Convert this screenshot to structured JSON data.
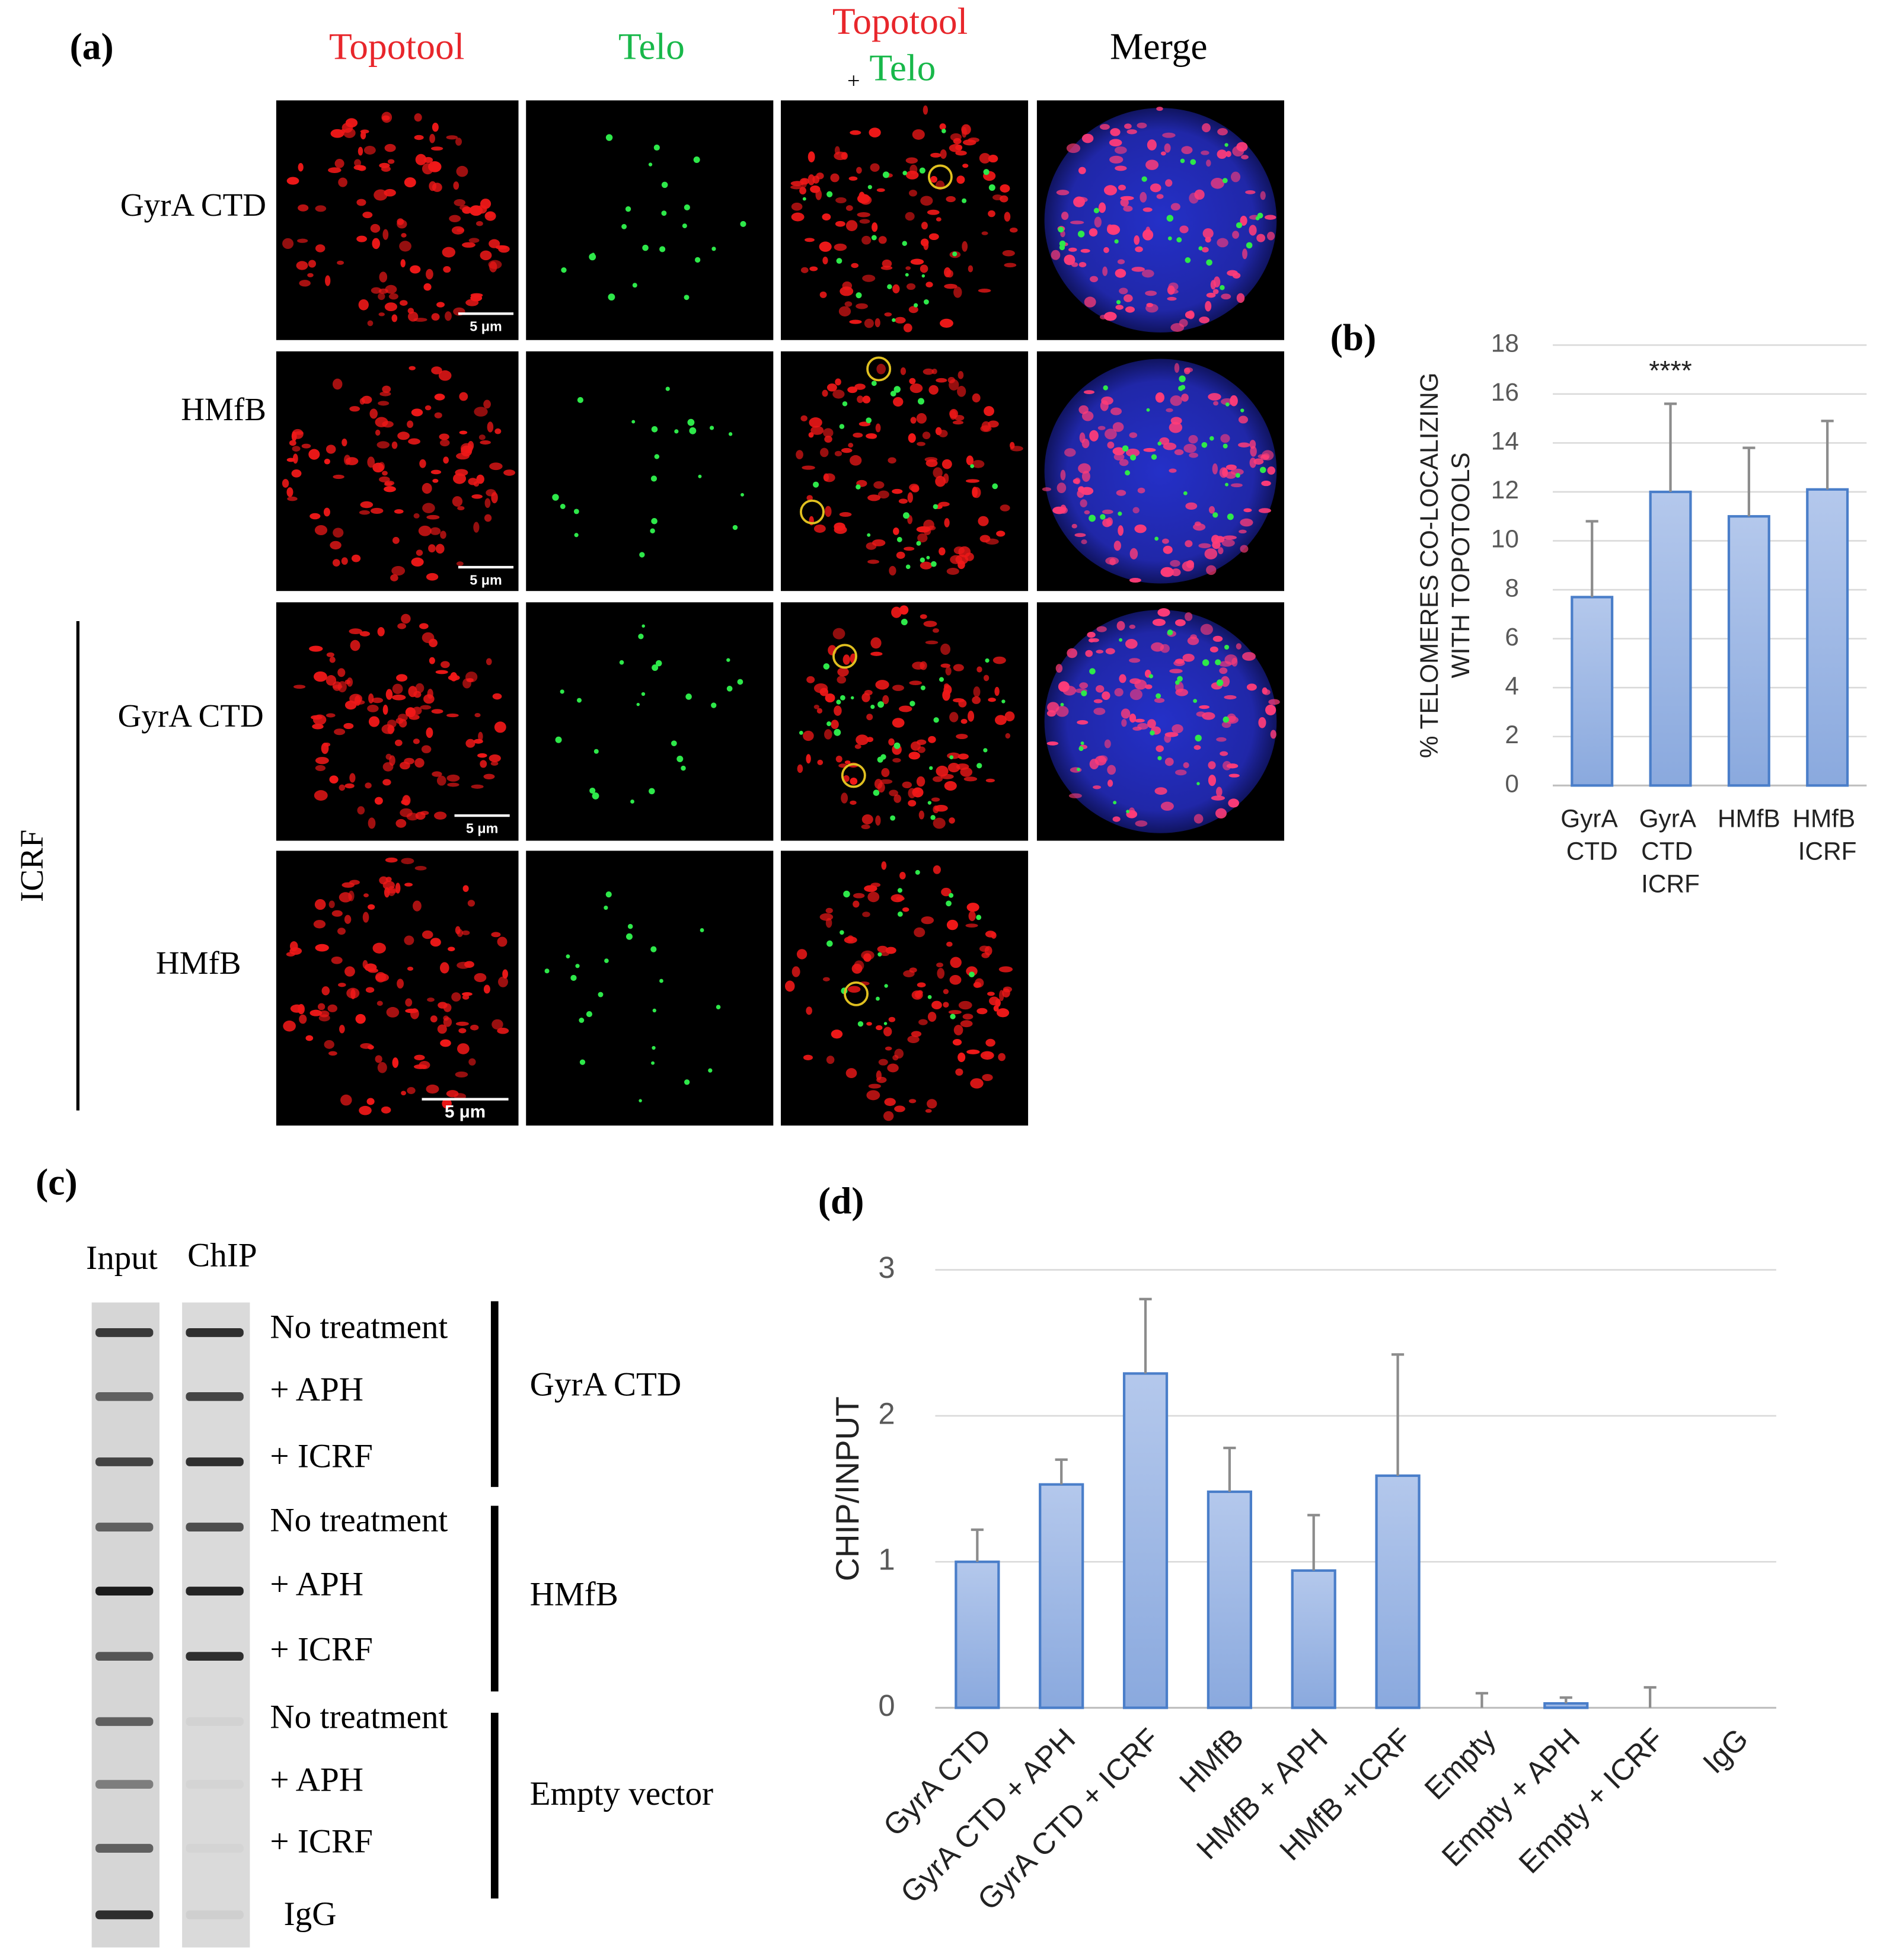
{
  "panel_a": {
    "label": "(a)",
    "headers": {
      "topotool": "Topotool",
      "telo": "Telo",
      "combined": [
        "Topotool",
        "+",
        "Telo"
      ],
      "merge": "Merge"
    },
    "rows": [
      "GyrA CTD",
      "HMfB",
      "GyrA CTD",
      "HMfB"
    ],
    "group": "ICRF",
    "scale_bars": [
      "5 μm",
      "5 μm",
      "5 μm",
      "5 μm"
    ]
  },
  "panel_c": {
    "label": "(c)",
    "lanes": [
      "Input",
      "ChIP"
    ],
    "treatments": [
      "No treatment",
      "+ APH",
      "+ ICRF",
      "No treatment",
      "+ APH",
      "+ ICRF",
      "No treatment",
      "+ APH",
      "+ ICRF",
      "IgG"
    ],
    "groups": [
      "GyrA CTD",
      "HMfB",
      "Empty vector"
    ]
  },
  "chart_data": [
    {
      "type": "bar",
      "panel_label": "(b)",
      "ylabel": [
        "% TELOMERES CO-LOCALIZING",
        "WITH TOPOTOOLS"
      ],
      "annotation": "****",
      "categories": [
        "GyrA CTD",
        "GyrA CTD ICRF",
        "HMfB",
        "HMfB ICRF"
      ],
      "series": [
        {
          "color": "#4a7ec9",
          "values": [
            7.7,
            12.0,
            11.0,
            12.1
          ],
          "errors": [
            3.1,
            3.6,
            2.8,
            2.8
          ]
        }
      ],
      "ylim": [
        0,
        18
      ],
      "yticks": [
        0,
        2,
        4,
        6,
        8,
        10,
        12,
        14,
        16,
        18
      ],
      "grid": true
    },
    {
      "type": "bar",
      "panel_label": "(d)",
      "ylabel": "CHIP/INPUT",
      "categories": [
        "GyrA CTD",
        "GyrA CTD + APH",
        "GyrA CTD + ICRF",
        "HMfB",
        "HMfB + APH",
        "HMfB +ICRF",
        "Empty",
        "Empty + APH",
        "Empty + ICRF",
        "IgG"
      ],
      "series": [
        {
          "color": "#4a7ec9",
          "values": [
            1.0,
            1.53,
            2.29,
            1.48,
            0.94,
            1.59,
            0,
            0.03,
            0,
            0
          ],
          "errors": [
            0.22,
            0.17,
            0.51,
            0.3,
            0.38,
            0.83,
            0.1,
            0.04,
            0.14,
            null
          ]
        }
      ],
      "ylim": [
        0,
        3
      ],
      "yticks": [
        0,
        1,
        2,
        3
      ],
      "grid": true
    }
  ]
}
